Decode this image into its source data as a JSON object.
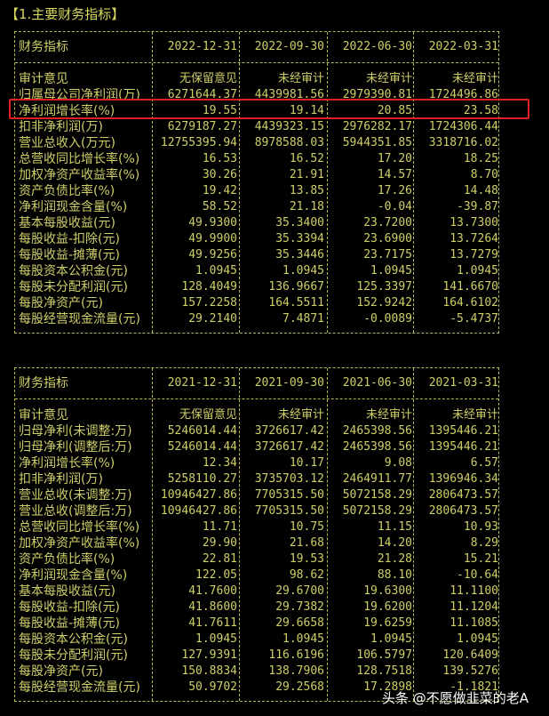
{
  "title": "【1.主要财务指标】",
  "watermark": "头条 @不愿做韭菜的老A",
  "highlight_color": "#e02020",
  "text_color": "#cfcf6a",
  "tables": [
    {
      "header": [
        "财务指标",
        "2022-12-31",
        "2022-09-30",
        "2022-06-30",
        "2022-03-31"
      ],
      "rows": [
        [
          "审计意见",
          "无保留意见",
          "未经审计",
          "未经审计",
          "未经审计"
        ],
        [
          "归属母公司净利润(万)",
          "6271644.37",
          "4439981.56",
          "2979390.81",
          "1724496.86"
        ],
        [
          "净利润增长率(%)",
          "19.55",
          "19.14",
          "20.85",
          "23.58"
        ],
        [
          "扣非净利润(万)",
          "6279187.27",
          "4439323.15",
          "2976282.17",
          "1724306.44"
        ],
        [
          "营业总收入(万元)",
          "12755395.94",
          "8978588.03",
          "5944351.85",
          "3318716.02"
        ],
        [
          "总营收同比增长率(%)",
          "16.53",
          "16.52",
          "17.20",
          "18.25"
        ],
        [
          "加权净资产收益率(%)",
          "30.26",
          "21.91",
          "14.57",
          "8.70"
        ],
        [
          "资产负债比率(%)",
          "19.42",
          "13.85",
          "17.26",
          "14.48"
        ],
        [
          "净利润现金含量(%)",
          "58.52",
          "21.18",
          "-0.04",
          "-39.87"
        ],
        [
          "基本每股收益(元)",
          "49.9300",
          "35.3400",
          "23.7200",
          "13.7300"
        ],
        [
          "每股收益-扣除(元)",
          "49.9900",
          "35.3394",
          "23.6900",
          "13.7264"
        ],
        [
          "每股收益-摊薄(元)",
          "49.9256",
          "35.3446",
          "23.7175",
          "13.7279"
        ],
        [
          "每股资本公积金(元)",
          "1.0945",
          "1.0945",
          "1.0945",
          "1.0945"
        ],
        [
          "每股未分配利润(元)",
          "128.4049",
          "136.9667",
          "125.3397",
          "141.6670"
        ],
        [
          "每股净资产(元)",
          "157.2258",
          "164.5511",
          "152.9242",
          "164.6102"
        ],
        [
          "每股经营现金流量(元)",
          "29.2140",
          "7.4871",
          "-0.0089",
          "-5.4737"
        ]
      ]
    },
    {
      "header": [
        "财务指标",
        "2021-12-31",
        "2021-09-30",
        "2021-06-30",
        "2021-03-31"
      ],
      "rows": [
        [
          "审计意见",
          "无保留意见",
          "未经审计",
          "未经审计",
          "未经审计"
        ],
        [
          "归母净利(未调整:万)",
          "5246014.44",
          "3726617.42",
          "2465398.56",
          "1395446.21"
        ],
        [
          "归母净利(调整后:万)",
          "5246014.44",
          "3726617.42",
          "2465398.56",
          "1395446.21"
        ],
        [
          "净利润增长率(%)",
          "12.34",
          "10.17",
          "9.08",
          "6.57"
        ],
        [
          "扣非净利润(万)",
          "5258110.27",
          "3735703.12",
          "2464911.77",
          "1396946.34"
        ],
        [
          "营业总收(未调整:万)",
          "10946427.86",
          "7705315.50",
          "5072158.29",
          "2806473.57"
        ],
        [
          "营业总收(调整后:万)",
          "10946427.86",
          "7705315.50",
          "5072158.29",
          "2806473.57"
        ],
        [
          "总营收同比增长率(%)",
          "11.71",
          "10.75",
          "11.15",
          "10.93"
        ],
        [
          "加权净资产收益率(%)",
          "29.90",
          "21.68",
          "14.20",
          "8.29"
        ],
        [
          "资产负债比率(%)",
          "22.81",
          "19.53",
          "21.28",
          "15.21"
        ],
        [
          "净利润现金含量(%)",
          "122.05",
          "98.62",
          "88.10",
          "-10.64"
        ],
        [
          "基本每股收益(元)",
          "41.7600",
          "29.6700",
          "19.6300",
          "11.1100"
        ],
        [
          "每股收益-扣除(元)",
          "41.8600",
          "29.7382",
          "19.6200",
          "11.1204"
        ],
        [
          "每股收益-摊薄(元)",
          "41.7611",
          "29.6658",
          "19.6259",
          "11.1085"
        ],
        [
          "每股资本公积金(元)",
          "1.0945",
          "1.0945",
          "1.0945",
          "1.0945"
        ],
        [
          "每股未分配利润(元)",
          "127.9391",
          "116.6196",
          "106.5797",
          "120.6409"
        ],
        [
          "每股净资产(元)",
          "150.8834",
          "138.7906",
          "128.7518",
          "139.5276"
        ],
        [
          "每股经营现金流量(元)",
          "50.9702",
          "29.2568",
          "17.2898",
          "-1.1821"
        ]
      ]
    }
  ]
}
